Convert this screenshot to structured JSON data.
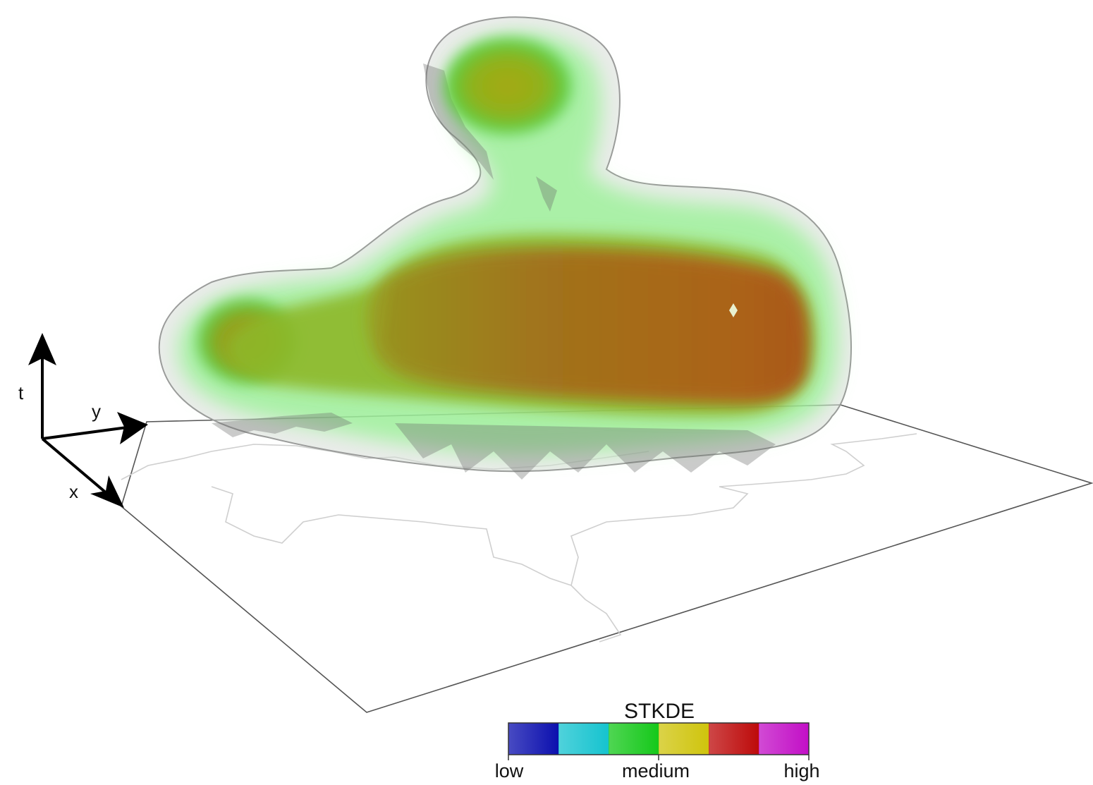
{
  "axes": {
    "t_label": "t",
    "y_label": "y",
    "x_label": "x"
  },
  "legend": {
    "title": "STKDE",
    "low_label": "low",
    "medium_label": "medium",
    "high_label": "high",
    "colors": [
      "#0b0fae",
      "#15c3cf",
      "#15c81a",
      "#cfc40c",
      "#bd0a0a",
      "#c20ec6"
    ]
  }
}
